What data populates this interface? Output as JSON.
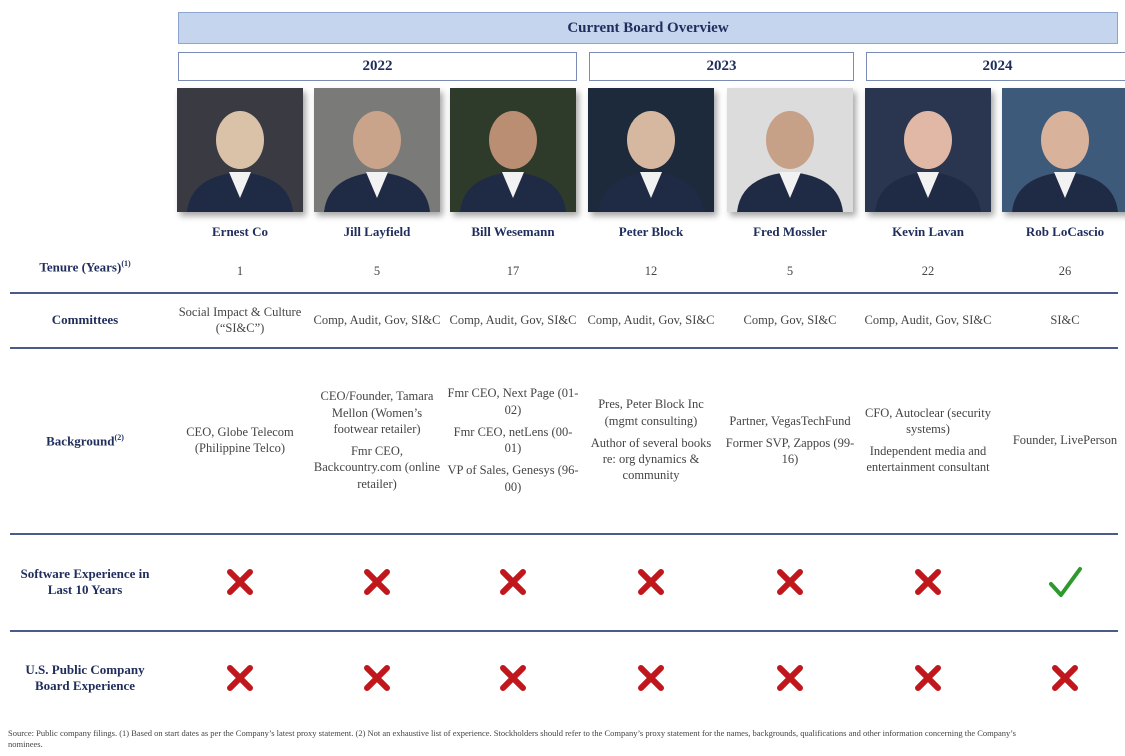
{
  "title": "Current Board Overview",
  "row_labels": {
    "tenure": {
      "text": "Tenure (Years)",
      "note": "(1)"
    },
    "committees": {
      "text": "Committees"
    },
    "background": {
      "text": "Background",
      "note": "(2)"
    },
    "software": {
      "text": "Software Experience in Last 10 Years"
    },
    "public_board": {
      "text": "U.S. Public Company Board Experience"
    }
  },
  "groups": [
    {
      "year": "2022",
      "people": [
        {
          "name": "Ernest Co",
          "tenure": 1,
          "committees": "Social Impact & Culture (“SI&C”)",
          "background": [
            "CEO, Globe Telecom (Philippine Telco)"
          ],
          "software": false,
          "public_board": false
        },
        {
          "name": "Jill Layfield",
          "tenure": 5,
          "committees": "Comp, Audit, Gov, SI&C",
          "background": [
            "CEO/Founder, Tamara Mellon (Women’s footwear retailer)",
            "Fmr CEO, Backcountry.com (online retailer)"
          ],
          "software": false,
          "public_board": false
        },
        {
          "name": "Bill Wesemann",
          "tenure": 17,
          "committees": "Comp, Audit, Gov, SI&C",
          "background": [
            "Fmr CEO, Next Page (01-02)",
            "Fmr CEO, netLens (00-01)",
            "VP of Sales, Genesys (96-00)"
          ],
          "software": false,
          "public_board": false
        }
      ]
    },
    {
      "year": "2023",
      "people": [
        {
          "name": "Peter Block",
          "tenure": 12,
          "committees": "Comp, Audit, Gov, SI&C",
          "background": [
            "Pres, Peter Block Inc (mgmt consulting)",
            "Author of several books re: org dynamics & community"
          ],
          "software": false,
          "public_board": false
        },
        {
          "name": "Fred Mossler",
          "tenure": 5,
          "committees": "Comp, Gov, SI&C",
          "background": [
            "Partner, VegasTechFund",
            "Former SVP, Zappos (99-16)"
          ],
          "software": false,
          "public_board": false
        }
      ]
    },
    {
      "year": "2024",
      "people": [
        {
          "name": "Kevin Lavan",
          "tenure": 22,
          "committees": "Comp, Audit, Gov, SI&C",
          "background": [
            "CFO, Autoclear (security systems)",
            "Independent media and entertainment consultant"
          ],
          "software": false,
          "public_board": false
        },
        {
          "name": "Rob LoCascio",
          "tenure": 26,
          "committees": "SI&C",
          "background": [
            "Founder, LivePerson"
          ],
          "software": true,
          "public_board": false
        }
      ]
    }
  ],
  "footnote": "Source: Public company filings. (1) Based on start dates as per the Company’s latest proxy statement. (2) Not an exhaustive list of experience. Stockholders should refer to the Company’s proxy statement for the names, backgrounds, qualifications and other information concerning the Company’s nominees."
}
